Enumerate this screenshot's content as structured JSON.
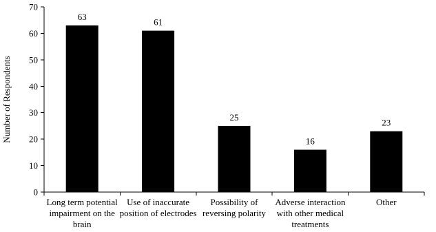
{
  "chart_data": {
    "type": "bar",
    "categories": [
      "Long term potential impairment on the brain",
      "Use of inaccurate position of electrodes",
      "Possibility of reversing polarity",
      "Adverse interaction with other medical treatments",
      "Other"
    ],
    "values": [
      63,
      61,
      25,
      16,
      23
    ],
    "ylabel": "Number of Respondents",
    "xlabel": "",
    "ylim": [
      0,
      70
    ],
    "yticks": [
      0,
      10,
      20,
      30,
      40,
      50,
      60,
      70
    ],
    "bar_color": "#000000",
    "grid": false,
    "legend": "none"
  }
}
